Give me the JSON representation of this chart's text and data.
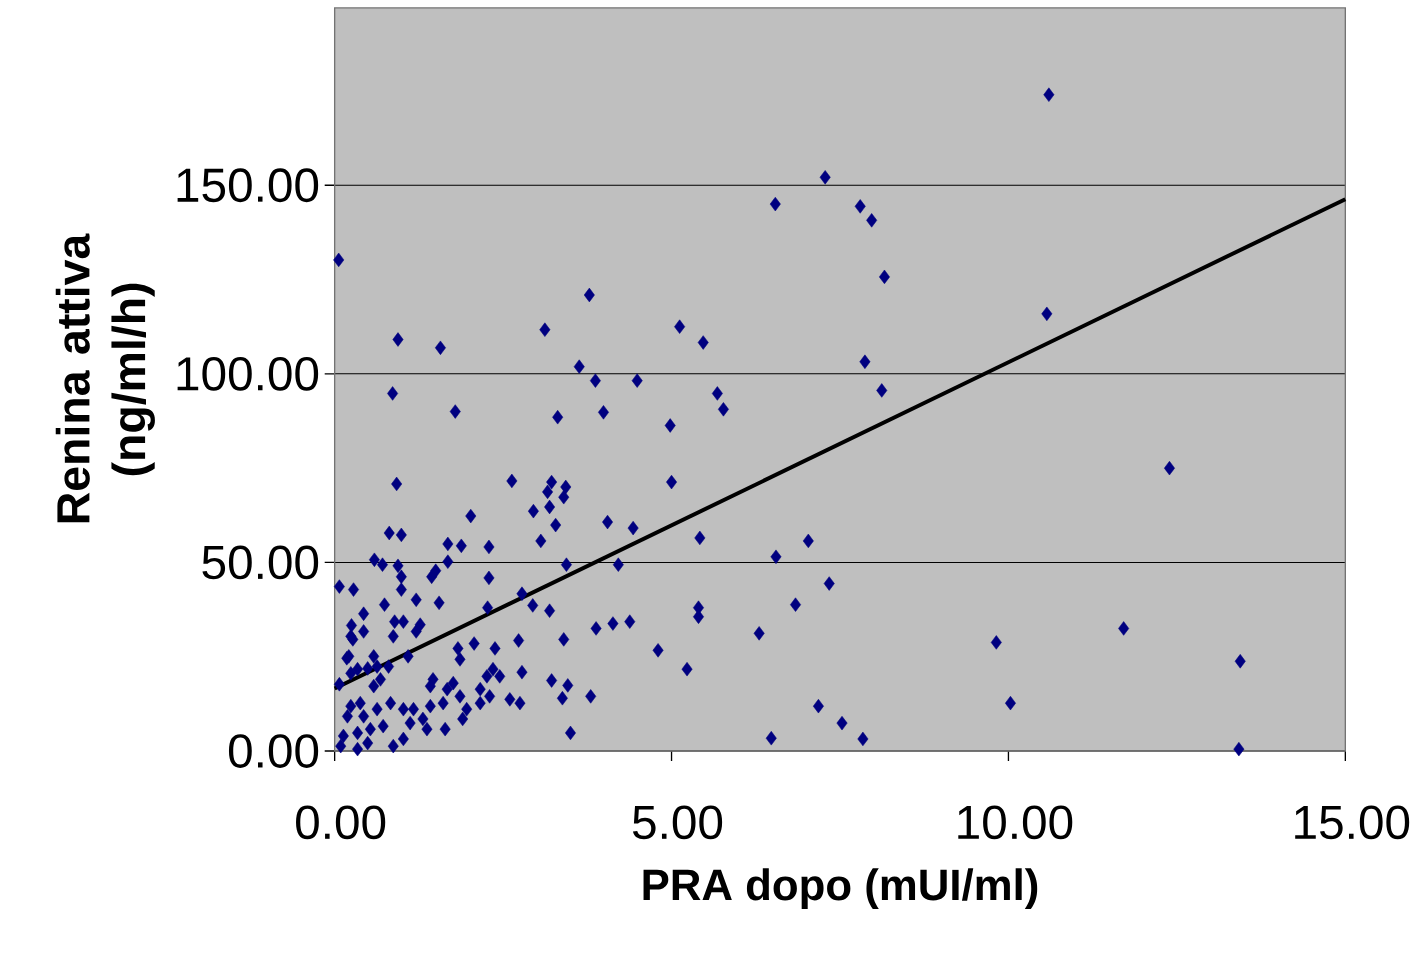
{
  "chart_data": {
    "type": "scatter",
    "xlabel": "PRA dopo (mUI/ml)",
    "ylabel": "Renina attiva (ng/ml/h)",
    "xlim": [
      0,
      15
    ],
    "ylim": [
      0,
      197
    ],
    "xticks": [
      {
        "value": 0,
        "label": "0.00"
      },
      {
        "value": 5,
        "label": "5.00"
      },
      {
        "value": 10,
        "label": "10.00"
      },
      {
        "value": 15,
        "label": "15.00"
      }
    ],
    "yticks": [
      {
        "value": 0,
        "label": "0.00"
      },
      {
        "value": 50,
        "label": "50.00"
      },
      {
        "value": 100,
        "label": "100.00"
      },
      {
        "value": 150,
        "label": "150.00"
      }
    ],
    "grid": "y",
    "series": [
      {
        "marker": "diamond",
        "color": "#000080",
        "x": [
          0.06,
          10.6,
          7.28,
          6.54,
          7.8,
          7.97,
          8.16,
          3.78,
          10.57,
          5.12,
          3.12,
          0.94,
          5.47,
          1.57,
          7.87,
          3.63,
          3.87,
          4.49,
          0.86,
          5.68,
          8.12,
          5.77,
          3.99,
          1.79,
          3.31,
          4.98,
          12.39,
          0.92,
          5.0,
          2.63,
          3.22,
          3.43,
          3.16,
          3.4,
          3.19,
          2.95,
          2.02,
          4.05,
          3.28,
          4.43,
          3.06,
          7.03,
          5.42,
          0.81,
          0.99,
          1.68,
          1.88,
          2.29,
          6.55,
          0.59,
          0.71,
          0.94,
          1.68,
          3.44,
          4.21,
          1.5,
          1.44,
          0.99,
          2.29,
          7.34,
          0.07,
          0.28,
          0.99,
          2.78,
          1.21,
          1.55,
          0.74,
          2.94,
          6.84,
          2.27,
          3.19,
          5.4,
          5.4,
          0.43,
          0.89,
          1.02,
          1.27,
          0.25,
          1.21,
          3.88,
          4.13,
          4.38,
          11.71,
          6.3,
          0.24,
          0.87,
          3.4,
          2.73,
          9.82,
          2.07,
          2.38,
          4.8,
          1.83,
          1.09,
          0.18,
          1.86,
          13.44,
          5.23,
          2.78,
          3.22,
          3.46,
          3.38,
          3.8,
          7.18,
          10.03,
          7.53,
          3.5,
          6.48,
          7.84,
          13.42,
          0.07,
          0.24,
          0.58,
          0.63,
          0.8,
          0.49,
          0.34,
          0.68,
          0.58,
          0.24,
          0.38,
          0.19,
          0.43,
          0.83,
          0.63,
          0.13,
          0.34,
          0.53,
          0.72,
          0.09,
          0.34,
          0.49,
          0.87,
          1.02,
          1.12,
          1.02,
          1.17,
          1.31,
          1.42,
          1.46,
          1.42,
          1.61,
          1.67,
          1.76,
          1.86,
          1.96,
          1.9,
          1.64,
          1.37,
          2.16,
          2.26,
          2.35,
          2.45,
          2.3,
          2.16,
          2.6,
          2.75,
          0.43,
          0.27,
          0.21
        ],
        "values": [
          130.2,
          174.0,
          152.1,
          145.0,
          144.4,
          140.7,
          125.7,
          120.9,
          115.9,
          112.5,
          111.7,
          109.1,
          108.3,
          106.9,
          103.2,
          101.9,
          98.2,
          98.2,
          94.8,
          94.8,
          95.6,
          90.6,
          89.8,
          90.0,
          88.5,
          86.3,
          75.0,
          70.8,
          71.3,
          71.6,
          71.3,
          70.0,
          68.7,
          67.3,
          64.7,
          63.6,
          62.3,
          60.7,
          59.9,
          59.1,
          55.7,
          55.7,
          56.5,
          57.8,
          57.3,
          54.9,
          54.4,
          54.1,
          51.5,
          50.7,
          49.4,
          49.1,
          50.2,
          49.4,
          49.4,
          47.8,
          46.2,
          46.2,
          45.9,
          44.4,
          43.6,
          42.8,
          42.8,
          41.7,
          40.1,
          39.3,
          38.8,
          38.6,
          38.8,
          38.0,
          37.2,
          38.0,
          35.6,
          36.4,
          34.3,
          34.3,
          33.5,
          33.3,
          31.7,
          32.5,
          33.8,
          34.3,
          32.5,
          31.2,
          30.4,
          30.4,
          29.6,
          29.3,
          28.8,
          28.5,
          27.2,
          26.7,
          27.2,
          25.1,
          24.6,
          24.3,
          23.8,
          21.7,
          20.9,
          18.7,
          17.4,
          14.0,
          14.5,
          11.9,
          12.7,
          7.4,
          4.8,
          3.4,
          3.2,
          0.5,
          17.7,
          20.6,
          25.1,
          22.4,
          22.4,
          21.9,
          21.7,
          19.0,
          17.2,
          11.9,
          12.7,
          9.2,
          9.2,
          12.7,
          11.1,
          4.0,
          4.8,
          5.8,
          6.6,
          1.3,
          0.5,
          2.1,
          1.3,
          3.2,
          7.4,
          11.1,
          11.1,
          8.5,
          11.9,
          19.0,
          17.2,
          12.7,
          16.4,
          18.0,
          14.5,
          11.1,
          8.5,
          5.8,
          5.8,
          16.4,
          19.8,
          21.7,
          19.8,
          14.5,
          12.7,
          13.7,
          12.7,
          31.7,
          29.6,
          25.1
        ]
      },
      {
        "type": "line",
        "color": "#000000",
        "x": [
          0,
          15
        ],
        "values": [
          16.6,
          146.3
        ]
      }
    ]
  }
}
